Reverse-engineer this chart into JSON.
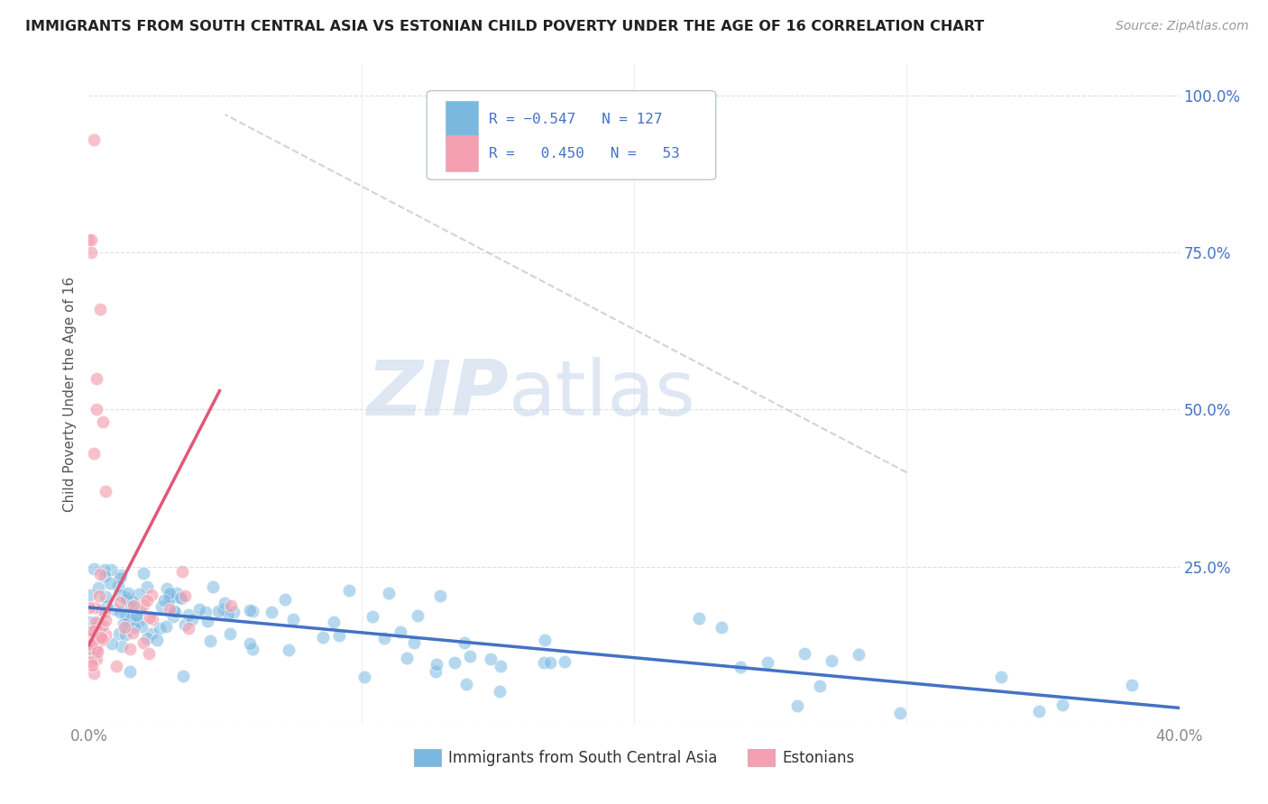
{
  "title": "IMMIGRANTS FROM SOUTH CENTRAL ASIA VS ESTONIAN CHILD POVERTY UNDER THE AGE OF 16 CORRELATION CHART",
  "source": "Source: ZipAtlas.com",
  "ylabel": "Child Poverty Under the Age of 16",
  "xlim": [
    0.0,
    0.4
  ],
  "ylim": [
    0.0,
    1.05
  ],
  "ytick_positions": [
    0.0,
    0.25,
    0.5,
    0.75,
    1.0
  ],
  "ytick_labels": [
    "",
    "25.0%",
    "50.0%",
    "75.0%",
    "100.0%"
  ],
  "xtick_positions": [
    0.0,
    0.1,
    0.2,
    0.3,
    0.4
  ],
  "xtick_labels": [
    "0.0%",
    "",
    "",
    "",
    "40.0%"
  ],
  "watermark_zip": "ZIP",
  "watermark_atlas": "atlas",
  "blue_color": "#7ab8e0",
  "pink_color": "#f4a0b0",
  "line_blue": "#4472c4",
  "line_pink": "#e05878",
  "line_dash_color": "#c8c8c8",
  "background": "#ffffff",
  "grid_color": "#d8dff0",
  "legend_text_color": "#4472c4",
  "title_color": "#222222",
  "source_color": "#999999",
  "ylabel_color": "#555555",
  "xtick_color": "#888888",
  "ytick_color": "#4472c4"
}
